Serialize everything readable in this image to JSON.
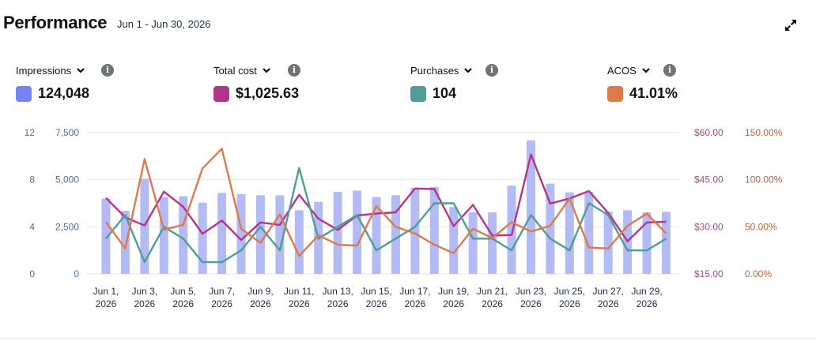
{
  "header": {
    "title": "Performance",
    "date_range": "Jun 1 - Jun 30, 2026"
  },
  "metrics": [
    {
      "label": "Impressions",
      "value": "124,048",
      "color": "#7583f5"
    },
    {
      "label": "Total cost",
      "value": "$1,025.63",
      "color": "#b5338a"
    },
    {
      "label": "Purchases",
      "value": "104",
      "color": "#4f9e95"
    },
    {
      "label": "ACOS",
      "value": "41.01%",
      "color": "#dc7a4a"
    }
  ],
  "icons": {
    "expand": "expand-arrows-icon",
    "dropdown": "chevron-down-icon",
    "info": "info-icon"
  },
  "chart_data": {
    "type": "bar",
    "x": [
      "Jun 1, 2026",
      "Jun 2, 2026",
      "Jun 3, 2026",
      "Jun 4, 2026",
      "Jun 5, 2026",
      "Jun 6, 2026",
      "Jun 7, 2026",
      "Jun 8, 2026",
      "Jun 9, 2026",
      "Jun 10, 2026",
      "Jun 11, 2026",
      "Jun 12, 2026",
      "Jun 13, 2026",
      "Jun 14, 2026",
      "Jun 15, 2026",
      "Jun 16, 2026",
      "Jun 17, 2026",
      "Jun 18, 2026",
      "Jun 19, 2026",
      "Jun 20, 2026",
      "Jun 21, 2026",
      "Jun 22, 2026",
      "Jun 23, 2026",
      "Jun 24, 2026",
      "Jun 25, 2026",
      "Jun 26, 2026",
      "Jun 27, 2026",
      "Jun 28, 2026",
      "Jun 29, 2026",
      "Jun 30, 2026"
    ],
    "tick_labels": [
      {
        "line1": "Jun 1,",
        "line2": "2026"
      },
      {
        "line1": "Jun 3,",
        "line2": "2026"
      },
      {
        "line1": "Jun 5,",
        "line2": "2026"
      },
      {
        "line1": "Jun 7,",
        "line2": "2026"
      },
      {
        "line1": "Jun 9,",
        "line2": "2026"
      },
      {
        "line1": "Jun 11,",
        "line2": "2026"
      },
      {
        "line1": "Jun 13,",
        "line2": "2026"
      },
      {
        "line1": "Jun 15,",
        "line2": "2026"
      },
      {
        "line1": "Jun 17,",
        "line2": "2026"
      },
      {
        "line1": "Jun 19,",
        "line2": "2026"
      },
      {
        "line1": "Jun 21,",
        "line2": "2026"
      },
      {
        "line1": "Jun 23,",
        "line2": "2026"
      },
      {
        "line1": "Jun 25,",
        "line2": "2026"
      },
      {
        "line1": "Jun 27,",
        "line2": "2026"
      },
      {
        "line1": "Jun 29,",
        "line2": "2026"
      }
    ],
    "tick_every": 2,
    "series": [
      {
        "name": "Impressions",
        "type": "bar",
        "axis": "impressions",
        "color": "#b3bbf5",
        "values": [
          4000,
          3350,
          5050,
          4080,
          4120,
          3780,
          4300,
          4230,
          4180,
          4170,
          3380,
          3830,
          4360,
          4420,
          4080,
          4180,
          4570,
          4620,
          3550,
          3270,
          3270,
          4680,
          7080,
          4800,
          4330,
          4350,
          3310,
          3380,
          3270,
          3300
        ]
      },
      {
        "name": "Total cost",
        "type": "line",
        "axis": "cost",
        "color": "#b5338a",
        "values": [
          39.2,
          33.0,
          30.4,
          41.2,
          36.4,
          27.8,
          32.0,
          25.8,
          31.4,
          30.6,
          40.2,
          32.6,
          29.0,
          33.6,
          34.2,
          34.6,
          42.2,
          42.0,
          30.2,
          37.0,
          27.2,
          27.4,
          53.0,
          37.4,
          39.0,
          41.4,
          34.4,
          25.4,
          31.4,
          31.6
        ]
      },
      {
        "name": "Purchases",
        "type": "line",
        "axis": "purchases",
        "color": "#4f9e95",
        "values": [
          3,
          5,
          1,
          4,
          3,
          1,
          1,
          2,
          4,
          2,
          9,
          3,
          4,
          5,
          2,
          3,
          4,
          6,
          6,
          3,
          3,
          2,
          5,
          3,
          2,
          6,
          5,
          2,
          2,
          3
        ]
      },
      {
        "name": "ACOS",
        "type": "line",
        "axis": "acos",
        "color": "#dc7a4a",
        "values": [
          55,
          27,
          122,
          47,
          52,
          112,
          133,
          48,
          33,
          63,
          19,
          41,
          31,
          30,
          72,
          50,
          43,
          31,
          22,
          48,
          38,
          55,
          45,
          51,
          80,
          28,
          27,
          51,
          64,
          43
        ]
      }
    ],
    "axes": {
      "purchases": {
        "range": [
          0,
          12
        ],
        "ticks": [
          {
            "v": 0,
            "label": "0"
          },
          {
            "v": 4,
            "label": "4"
          },
          {
            "v": 8,
            "label": "8"
          },
          {
            "v": 12,
            "label": "12"
          }
        ],
        "color": "#4a6fa5"
      },
      "impressions": {
        "range": [
          0,
          7500
        ],
        "ticks": [
          {
            "v": 0,
            "label": "0"
          },
          {
            "v": 2500,
            "label": "2,500"
          },
          {
            "v": 5000,
            "label": "5,000"
          },
          {
            "v": 7500,
            "label": "7,500"
          }
        ],
        "color": "#4a6fa5"
      },
      "cost": {
        "range": [
          15,
          60
        ],
        "ticks": [
          {
            "v": 15,
            "label": "$15.00"
          },
          {
            "v": 30,
            "label": "$30.00"
          },
          {
            "v": 45,
            "label": "$45.00"
          },
          {
            "v": 60,
            "label": "$60.00"
          }
        ],
        "color": "#a14c88"
      },
      "acos": {
        "range": [
          0,
          150
        ],
        "ticks": [
          {
            "v": 0,
            "label": "0.00%"
          },
          {
            "v": 50,
            "label": "50.00%"
          },
          {
            "v": 100,
            "label": "100.00%"
          },
          {
            "v": 150,
            "label": "150.00%"
          }
        ],
        "color": "#b5653a"
      }
    },
    "grid": true,
    "legend": "top"
  }
}
